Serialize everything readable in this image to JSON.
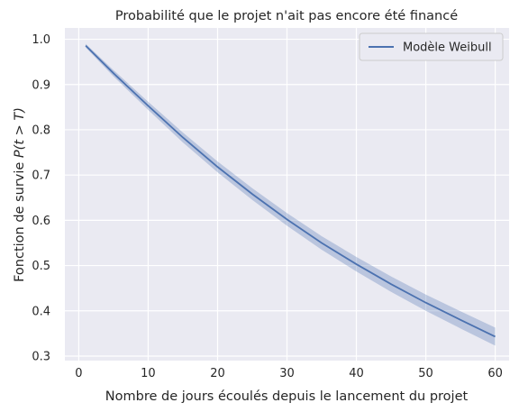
{
  "chart_data": {
    "type": "line",
    "title": "Probabilité que le projet n'ait pas encore été financé",
    "xlabel": "Nombre de jours écoulés depuis le lancement du projet",
    "ylabel_prefix": "Fonction de survie ",
    "ylabel_math": "P(t > T)",
    "xlim": [
      -2,
      62
    ],
    "ylim": [
      0.29,
      1.025
    ],
    "xticks": [
      0,
      10,
      20,
      30,
      40,
      50,
      60
    ],
    "yticks": [
      0.3,
      0.4,
      0.5,
      0.6,
      0.7,
      0.8,
      0.9,
      1.0
    ],
    "ytick_labels": [
      "0.3",
      "0.4",
      "0.5",
      "0.6",
      "0.7",
      "0.8",
      "0.9",
      "1.0"
    ],
    "grid": true,
    "background": "#eaeaf2",
    "legend": {
      "position": "top-right"
    },
    "series": [
      {
        "name": "Modèle Weibull",
        "color": "#4c72b0",
        "band_color": "#4c72b0",
        "x": [
          1,
          5,
          10,
          15,
          20,
          25,
          30,
          35,
          40,
          45,
          50,
          55,
          60
        ],
        "y": [
          0.986,
          0.925,
          0.853,
          0.783,
          0.718,
          0.658,
          0.602,
          0.55,
          0.503,
          0.459,
          0.418,
          0.38,
          0.343
        ],
        "lower": [
          0.982,
          0.918,
          0.844,
          0.772,
          0.706,
          0.645,
          0.588,
          0.535,
          0.487,
          0.442,
          0.4,
          0.361,
          0.323
        ],
        "upper": [
          0.99,
          0.932,
          0.862,
          0.794,
          0.73,
          0.671,
          0.616,
          0.565,
          0.519,
          0.476,
          0.436,
          0.399,
          0.363
        ]
      }
    ]
  }
}
